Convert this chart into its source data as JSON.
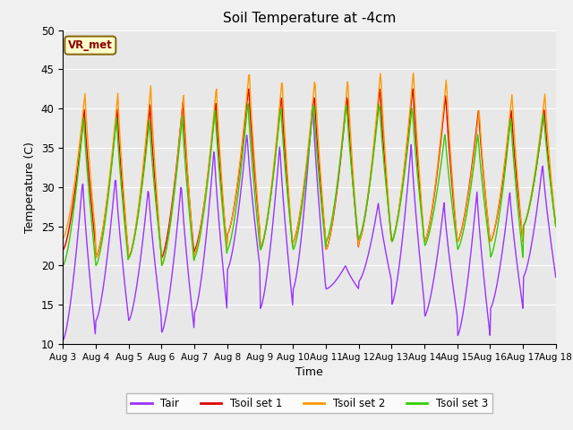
{
  "title": "Soil Temperature at -4cm",
  "xlabel": "Time",
  "ylabel": "Temperature (C)",
  "ylim": [
    10,
    50
  ],
  "xlim": [
    0,
    15
  ],
  "plot_bg_color": "#e8e8e8",
  "fig_bg_color": "#f0f0f0",
  "annotation_text": "VR_met",
  "xtick_labels": [
    "Aug 3",
    "Aug 4",
    "Aug 5",
    "Aug 6",
    "Aug 7",
    "Aug 8",
    "Aug 9",
    "Aug 10",
    "Aug 11",
    "Aug 12",
    "Aug 13",
    "Aug 14",
    "Aug 15",
    "Aug 16",
    "Aug 17",
    "Aug 18"
  ],
  "colors": {
    "Tair": "#9933ff",
    "Tsoil_set1": "#dd0000",
    "Tsoil_set2": "#ff9900",
    "Tsoil_set3": "#33cc00"
  },
  "legend_labels": [
    "Tair",
    "Tsoil set 1",
    "Tsoil set 2",
    "Tsoil set 3"
  ],
  "tair_min": [
    10.5,
    13,
    13,
    11.5,
    14,
    19.5,
    14.5,
    17,
    17,
    18,
    15,
    13.5,
    11,
    14.5,
    18.5
  ],
  "tair_max": [
    31,
    31.5,
    30,
    30.5,
    35,
    37,
    35.5,
    41,
    20,
    28,
    35.5,
    28,
    29.5,
    29.5,
    33
  ],
  "tsoil1_min": [
    22,
    21,
    21,
    21,
    22,
    24,
    22,
    23,
    22,
    23,
    23,
    23,
    23,
    23,
    25
  ],
  "tsoil1_max": [
    40,
    40,
    40.5,
    41,
    41,
    43,
    42,
    42,
    42,
    43,
    43,
    42,
    40,
    40,
    40
  ],
  "tsoil2_min": [
    23.5,
    21,
    21,
    20,
    21.5,
    24,
    22,
    23,
    22,
    23,
    23,
    23,
    23,
    23,
    25
  ],
  "tsoil2_max": [
    42,
    42,
    43,
    42,
    43,
    45,
    44,
    44,
    44,
    45,
    45,
    44,
    40,
    42,
    42
  ],
  "tsoil3_min": [
    20,
    20,
    21,
    20,
    21,
    22,
    22,
    22,
    23,
    23.5,
    23,
    22.5,
    22,
    21,
    25
  ],
  "tsoil3_max": [
    39,
    39,
    38.5,
    39,
    40,
    41,
    40.5,
    41,
    41,
    41,
    40.5,
    37,
    37,
    39,
    39.5
  ]
}
